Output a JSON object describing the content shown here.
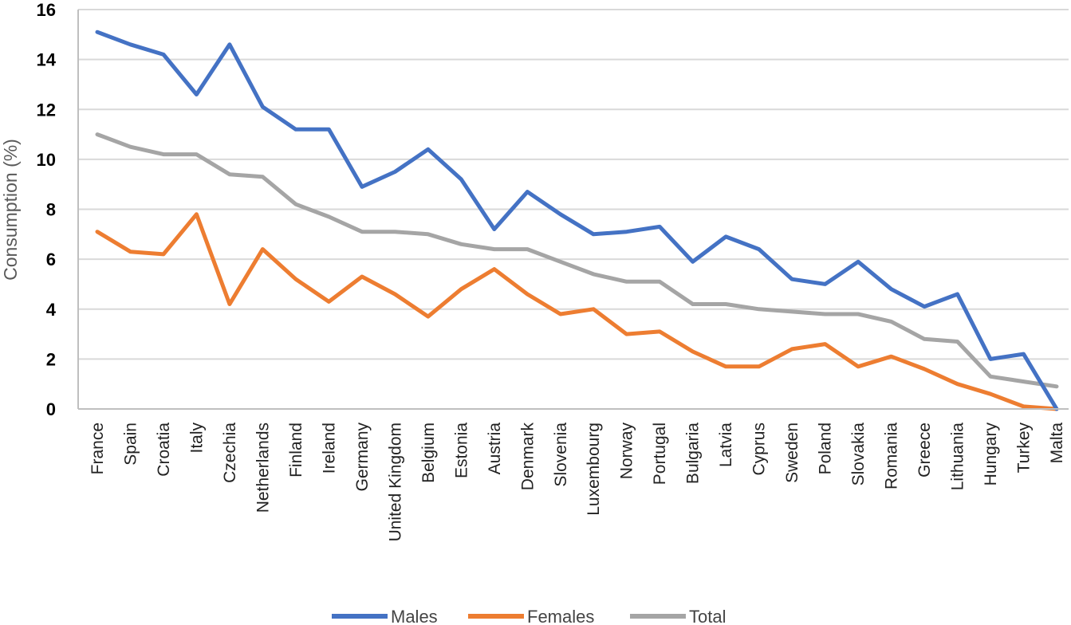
{
  "chart_data": {
    "type": "line",
    "title": "",
    "xlabel": "",
    "ylabel": "Consumption (%)",
    "ylim": [
      0,
      16
    ],
    "yticks": [
      0,
      2,
      4,
      6,
      8,
      10,
      12,
      14,
      16
    ],
    "grid": true,
    "legend_position": "bottom-center",
    "categories": [
      "France",
      "Spain",
      "Croatia",
      "Italy",
      "Czechia",
      "Netherlands",
      "Finland",
      "Ireland",
      "Germany",
      "United Kingdom",
      "Belgium",
      "Estonia",
      "Austria",
      "Denmark",
      "Slovenia",
      "Luxembourg",
      "Norway",
      "Portugal",
      "Bulgaria",
      "Latvia",
      "Cyprus",
      "Sweden",
      "Poland",
      "Slovakia",
      "Romania",
      "Greece",
      "Lithuania",
      "Hungary",
      "Turkey",
      "Malta"
    ],
    "series": [
      {
        "name": "Males",
        "color": "#4472C4",
        "values": [
          15.1,
          14.6,
          14.2,
          12.6,
          14.6,
          12.1,
          11.2,
          11.2,
          8.9,
          9.5,
          10.4,
          9.2,
          7.2,
          8.7,
          7.8,
          7.0,
          7.1,
          7.3,
          5.9,
          6.9,
          6.4,
          5.2,
          5.0,
          5.9,
          4.8,
          4.1,
          4.6,
          2.0,
          2.2,
          0.0
        ]
      },
      {
        "name": "Females",
        "color": "#ED7D31",
        "values": [
          7.1,
          6.3,
          6.2,
          7.8,
          4.2,
          6.4,
          5.2,
          4.3,
          5.3,
          4.6,
          3.7,
          4.8,
          5.6,
          4.6,
          3.8,
          4.0,
          3.0,
          3.1,
          2.3,
          1.7,
          1.7,
          2.4,
          2.6,
          1.7,
          2.1,
          1.6,
          1.0,
          0.6,
          0.1,
          0.0
        ]
      },
      {
        "name": "Total",
        "color": "#A5A5A5",
        "values": [
          11.0,
          10.5,
          10.2,
          10.2,
          9.4,
          9.3,
          8.2,
          7.7,
          7.1,
          7.1,
          7.0,
          6.6,
          6.4,
          6.4,
          5.9,
          5.4,
          5.1,
          5.1,
          4.2,
          4.2,
          4.0,
          3.9,
          3.8,
          3.8,
          3.5,
          2.8,
          2.7,
          1.3,
          1.1,
          0.9
        ]
      }
    ]
  }
}
